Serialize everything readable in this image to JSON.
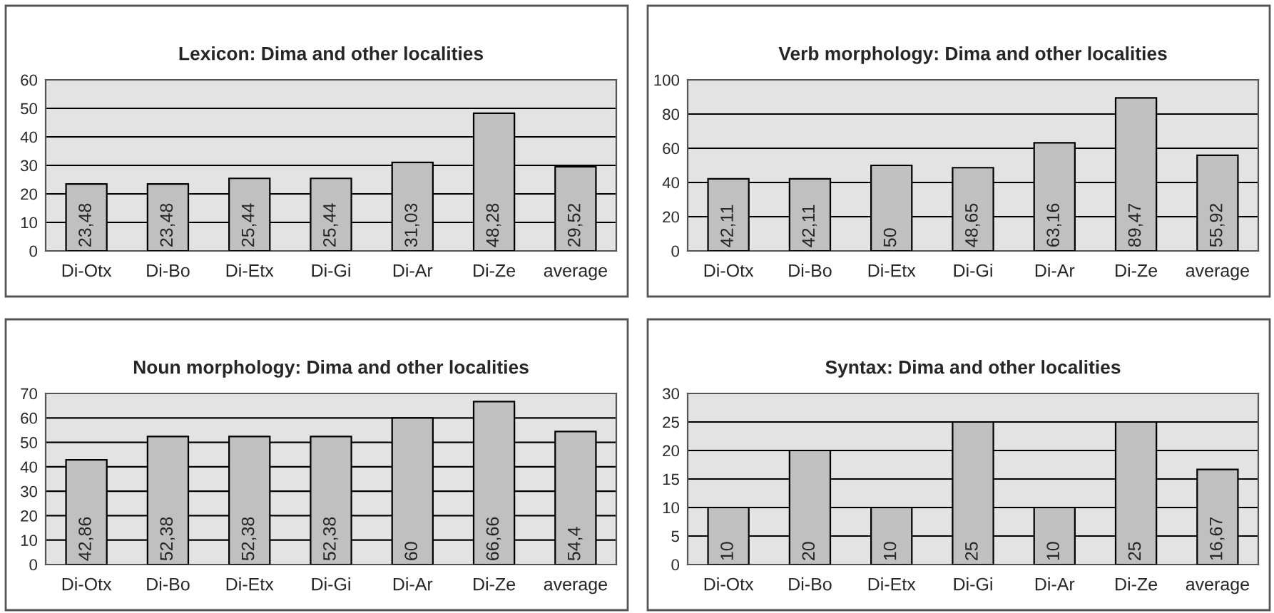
{
  "chart_data": [
    {
      "type": "bar",
      "title": "Lexicon: Dima and other localities",
      "categories": [
        "Di-Otx",
        "Di-Bo",
        "Di-Etx",
        "Di-Gi",
        "Di-Ar",
        "Di-Ze",
        "average"
      ],
      "values": [
        23.48,
        23.48,
        25.44,
        25.44,
        31.03,
        48.28,
        29.52
      ],
      "value_labels": [
        "23,48",
        "23,48",
        "25,44",
        "25,44",
        "31,03",
        "48,28",
        "29,52"
      ],
      "color": "#c0c0c0",
      "ylim": [
        0,
        60
      ],
      "yticks": [
        0,
        10,
        20,
        30,
        40,
        50,
        60
      ],
      "grid": "y",
      "legend": false
    },
    {
      "type": "bar",
      "title": "Verb morphology: Dima and other localities",
      "categories": [
        "Di-Otx",
        "Di-Bo",
        "Di-Etx",
        "Di-Gi",
        "Di-Ar",
        "Di-Ze",
        "average"
      ],
      "values": [
        42.11,
        42.11,
        50,
        48.65,
        63.16,
        89.47,
        55.92
      ],
      "value_labels": [
        "42,11",
        "42,11",
        "50",
        "48,65",
        "63,16",
        "89,47",
        "55,92"
      ],
      "color": "#c0c0c0",
      "ylim": [
        0,
        100
      ],
      "yticks": [
        0,
        20,
        40,
        60,
        80,
        100
      ],
      "grid": "y",
      "legend": false
    },
    {
      "type": "bar",
      "title": "Noun morphology: Dima and other localities",
      "categories": [
        "Di-Otx",
        "Di-Bo",
        "Di-Etx",
        "Di-Gi",
        "Di-Ar",
        "Di-Ze",
        "average"
      ],
      "values": [
        42.86,
        52.38,
        52.38,
        52.38,
        60,
        66.66,
        54.4
      ],
      "value_labels": [
        "42,86",
        "52,38",
        "52,38",
        "52,38",
        "60",
        "66,66",
        "54,4"
      ],
      "color": "#c0c0c0",
      "ylim": [
        0,
        70
      ],
      "yticks": [
        0,
        10,
        20,
        30,
        40,
        50,
        60,
        70
      ],
      "grid": "y",
      "legend": false
    },
    {
      "type": "bar",
      "title": "Syntax: Dima and other localities",
      "categories": [
        "Di-Otx",
        "Di-Bo",
        "Di-Etx",
        "Di-Gi",
        "Di-Ar",
        "Di-Ze",
        "average"
      ],
      "values": [
        10,
        20,
        10,
        25,
        10,
        25,
        16.67
      ],
      "value_labels": [
        "10",
        "20",
        "10",
        "25",
        "10",
        "25",
        "16,67"
      ],
      "color": "#c0c0c0",
      "ylim": [
        0,
        30
      ],
      "yticks": [
        0,
        5,
        10,
        15,
        20,
        25,
        30
      ],
      "grid": "y",
      "legend": false
    }
  ]
}
